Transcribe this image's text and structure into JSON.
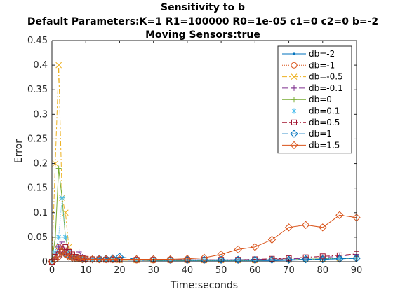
{
  "chart_data": {
    "type": "line",
    "title": [
      "Sensitivity to b",
      "Default Parameters:K=1 R1=100000 R0=1e-05 c1=0 c2=0 b=-2",
      "Moving Sensors:true"
    ],
    "xlabel": "Time:seconds",
    "ylabel": "Error",
    "xlim": [
      0,
      90
    ],
    "ylim": [
      0,
      0.45
    ],
    "xticks": [
      0,
      10,
      20,
      30,
      40,
      50,
      60,
      70,
      80,
      90
    ],
    "yticks": [
      0,
      0.05,
      0.1,
      0.15,
      0.2,
      0.25,
      0.3,
      0.35,
      0.4,
      0.45
    ],
    "xtick_labels": [
      "0",
      "10",
      "20",
      "30",
      "40",
      "50",
      "60",
      "70",
      "80",
      "90"
    ],
    "ytick_labels": [
      "0",
      "0.05",
      "0.1",
      "0.15",
      "0.2",
      "0.25",
      "0.3",
      "0.35",
      "0.4",
      "0.45"
    ],
    "grid": false,
    "legend_position": "top-right",
    "series": [
      {
        "name": "db=-2",
        "color": "#0072bd",
        "dash": "",
        "marker": "dot",
        "x": [
          0,
          1,
          2,
          3,
          4,
          5,
          6,
          7,
          8,
          9,
          10,
          12,
          14,
          16,
          18,
          20,
          25,
          30,
          35,
          40,
          45,
          50,
          55,
          60,
          65,
          70,
          75,
          80,
          85,
          90
        ],
        "y": [
          0,
          0.01,
          0.02,
          0.015,
          0.01,
          0.008,
          0.006,
          0.005,
          0.004,
          0.004,
          0.004,
          0.004,
          0.003,
          0.003,
          0.003,
          0.003,
          0.003,
          0.002,
          0.002,
          0.002,
          0.002,
          0.002,
          0.002,
          0.002,
          0.002,
          0.003,
          0.004,
          0.005,
          0.006,
          0.007
        ]
      },
      {
        "name": "db=-1",
        "color": "#d95319",
        "dash": "1,2",
        "marker": "circle",
        "x": [
          0,
          1,
          2,
          3,
          4,
          5,
          6,
          7,
          8,
          9,
          10,
          12,
          14,
          16,
          18,
          20,
          25,
          30,
          35,
          40,
          45,
          50,
          55,
          60,
          65,
          70,
          75,
          80,
          85,
          90
        ],
        "y": [
          0,
          0.01,
          0.03,
          0.025,
          0.02,
          0.012,
          0.01,
          0.008,
          0.007,
          0.006,
          0.005,
          0.005,
          0.004,
          0.004,
          0.004,
          0.004,
          0.003,
          0.003,
          0.003,
          0.003,
          0.003,
          0.003,
          0.003,
          0.003,
          0.004,
          0.004,
          0.005,
          0.006,
          0.007,
          0.008
        ]
      },
      {
        "name": "db=-0.5",
        "color": "#edb120",
        "dash": "7,3,2,3",
        "marker": "x",
        "x": [
          0,
          1,
          2,
          3,
          4,
          5,
          6,
          7,
          8,
          9,
          10,
          12,
          14,
          16,
          18,
          20,
          25,
          30,
          35,
          40,
          45,
          50,
          55,
          60,
          65,
          70,
          75,
          80,
          85,
          90
        ],
        "y": [
          0,
          0.2,
          0.4,
          0.13,
          0.1,
          0.03,
          0.01,
          0.008,
          0.006,
          0.005,
          0.005,
          0.004,
          0.004,
          0.004,
          0.004,
          0.003,
          0.003,
          0.003,
          0.003,
          0.003,
          0.003,
          0.003,
          0.003,
          0.003,
          0.004,
          0.004,
          0.005,
          0.006,
          0.007,
          0.008
        ]
      },
      {
        "name": "db=-0.1",
        "color": "#7e2f8e",
        "dash": "8,4",
        "marker": "plus",
        "x": [
          0,
          1,
          2,
          3,
          4,
          5,
          6,
          7,
          8,
          9,
          10,
          12,
          14,
          16,
          18,
          20,
          25,
          30,
          35,
          40,
          45,
          50,
          55,
          60,
          65,
          70,
          75,
          80,
          85,
          90
        ],
        "y": [
          0,
          0.01,
          0.03,
          0.04,
          0.02,
          0.015,
          0.01,
          0.008,
          0.02,
          0.01,
          0.008,
          0.006,
          0.005,
          0.005,
          0.005,
          0.004,
          0.004,
          0.004,
          0.004,
          0.004,
          0.004,
          0.004,
          0.004,
          0.005,
          0.005,
          0.006,
          0.007,
          0.009,
          0.011,
          0.015
        ]
      },
      {
        "name": "db=0",
        "color": "#77ac30",
        "dash": "",
        "marker": "plus",
        "x": [
          0,
          1,
          2,
          3,
          4,
          5,
          6,
          7,
          8,
          9,
          10,
          12,
          14,
          16,
          18,
          20,
          25,
          30,
          35,
          40,
          45,
          50,
          55,
          60,
          65,
          70,
          75,
          80,
          85,
          90
        ],
        "y": [
          0,
          0.05,
          0.19,
          0.13,
          0.05,
          0.02,
          0.01,
          0.008,
          0.006,
          0.005,
          0.005,
          0.004,
          0.004,
          0.004,
          0.004,
          0.004,
          0.004,
          0.003,
          0.003,
          0.003,
          0.003,
          0.003,
          0.003,
          0.003,
          0.004,
          0.004,
          0.005,
          0.006,
          0.007,
          0.008
        ]
      },
      {
        "name": "db=0.1",
        "color": "#4dbeee",
        "dash": "1,2",
        "marker": "asterisk",
        "x": [
          0,
          1,
          2,
          3,
          4,
          5,
          6,
          7,
          8,
          9,
          10,
          12,
          14,
          16,
          18,
          20,
          25,
          30,
          35,
          40,
          45,
          50,
          55,
          60,
          65,
          70,
          75,
          80,
          85,
          90
        ],
        "y": [
          0,
          0.02,
          0.05,
          0.13,
          0.05,
          0.02,
          0.01,
          0.008,
          0.006,
          0.005,
          0.005,
          0.004,
          0.004,
          0.004,
          0.004,
          0.004,
          0.004,
          0.003,
          0.003,
          0.003,
          0.003,
          0.003,
          0.003,
          0.003,
          0.004,
          0.004,
          0.005,
          0.006,
          0.007,
          0.008
        ]
      },
      {
        "name": "db=0.5",
        "color": "#a2142f",
        "dash": "7,3,2,3",
        "marker": "square",
        "x": [
          0,
          1,
          2,
          3,
          4,
          5,
          6,
          7,
          8,
          9,
          10,
          12,
          14,
          16,
          18,
          20,
          25,
          30,
          35,
          40,
          45,
          50,
          55,
          60,
          65,
          70,
          75,
          80,
          85,
          90
        ],
        "y": [
          0,
          0.01,
          0.015,
          0.02,
          0.03,
          0.02,
          0.015,
          0.01,
          0.008,
          0.007,
          0.006,
          0.005,
          0.005,
          0.004,
          0.004,
          0.004,
          0.004,
          0.004,
          0.004,
          0.004,
          0.004,
          0.004,
          0.004,
          0.005,
          0.006,
          0.007,
          0.009,
          0.011,
          0.013,
          0.016
        ]
      },
      {
        "name": "db=1",
        "color": "#0072bd",
        "dash": "8,4",
        "marker": "diamond",
        "x": [
          0,
          1,
          2,
          3,
          4,
          5,
          6,
          7,
          8,
          9,
          10,
          12,
          14,
          16,
          18,
          20,
          25,
          30,
          35,
          40,
          45,
          50,
          55,
          60,
          65,
          70,
          75,
          80,
          85,
          90
        ],
        "y": [
          0,
          0.005,
          0.01,
          0.02,
          0.015,
          0.01,
          0.008,
          0.007,
          0.006,
          0.005,
          0.005,
          0.005,
          0.006,
          0.006,
          0.007,
          0.01,
          0.005,
          0.005,
          0.004,
          0.004,
          0.004,
          0.004,
          0.004,
          0.004,
          0.004,
          0.004,
          0.005,
          0.005,
          0.006,
          0.007
        ]
      },
      {
        "name": "db=1.5",
        "color": "#d95319",
        "dash": "",
        "marker": "diamond",
        "x": [
          0,
          1,
          2,
          3,
          4,
          5,
          6,
          7,
          8,
          9,
          10,
          12,
          14,
          16,
          18,
          20,
          25,
          30,
          35,
          40,
          45,
          50,
          55,
          60,
          65,
          70,
          75,
          80,
          85,
          90
        ],
        "y": [
          0,
          0.005,
          0.01,
          0.02,
          0.015,
          0.01,
          0.008,
          0.007,
          0.006,
          0.005,
          0.005,
          0.005,
          0.005,
          0.005,
          0.005,
          0.005,
          0.005,
          0.005,
          0.005,
          0.006,
          0.008,
          0.015,
          0.025,
          0.03,
          0.045,
          0.07,
          0.075,
          0.07,
          0.095,
          0.09
        ]
      }
    ]
  }
}
